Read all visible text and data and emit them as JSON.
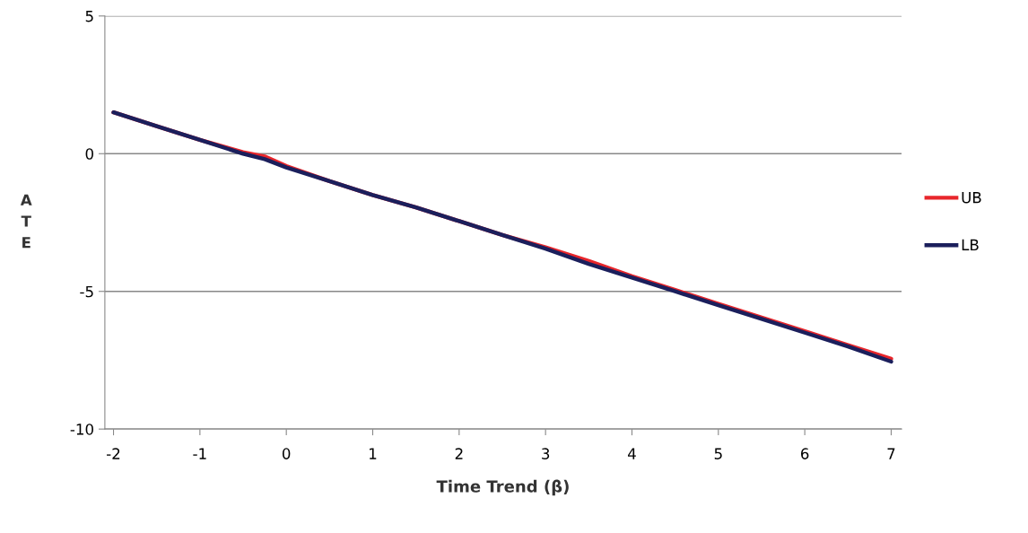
{
  "chart_data": {
    "type": "line",
    "xlabel": "Time Trend (β)",
    "ylabel": "ATE",
    "x": [
      -2,
      -1.5,
      -1,
      -0.5,
      -0.25,
      0,
      0.5,
      1,
      1.5,
      2,
      2.5,
      3,
      3.5,
      4,
      4.5,
      5,
      5.5,
      6,
      6.5,
      7
    ],
    "series": [
      {
        "name": "UB",
        "color": "#e8262b",
        "values": [
          1.5,
          1.0,
          0.5,
          0.05,
          -0.1,
          -0.45,
          -1.0,
          -1.5,
          -1.95,
          -2.45,
          -2.95,
          -3.4,
          -3.9,
          -4.45,
          -4.95,
          -5.45,
          -5.95,
          -6.45,
          -6.95,
          -7.45
        ]
      },
      {
        "name": "LB",
        "color": "#1b1f5c",
        "values": [
          1.5,
          1.0,
          0.5,
          0.0,
          -0.2,
          -0.5,
          -1.0,
          -1.5,
          -1.95,
          -2.45,
          -2.95,
          -3.45,
          -4.0,
          -4.5,
          -5.0,
          -5.5,
          -6.0,
          -6.5,
          -7.0,
          -7.55
        ]
      }
    ],
    "xlim": [
      -2.1,
      7.12
    ],
    "xticks": [
      -2,
      -1,
      0,
      1,
      2,
      3,
      4,
      5,
      6,
      7
    ],
    "ylim": [
      -10,
      5
    ],
    "yticks": [
      -10,
      -5,
      0,
      5
    ],
    "grid": "y",
    "legend": "right",
    "marker": "none",
    "line_style": "solid"
  }
}
